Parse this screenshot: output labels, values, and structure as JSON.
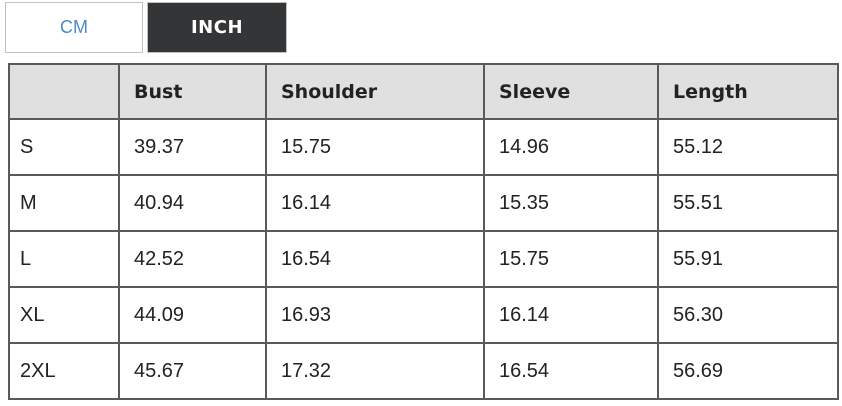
{
  "unit_toggle": {
    "cm_label": "CM",
    "inch_label": "INCH",
    "active_unit": "INCH",
    "active_bg_color": "#333537",
    "active_text_color": "#ffffff",
    "inactive_text_color": "#4a8bc4"
  },
  "size_table": {
    "columns": [
      "",
      "Bust",
      "Shoulder",
      "Sleeve",
      "Length"
    ],
    "rows": [
      {
        "size": "S",
        "values": [
          "39.37",
          "15.75",
          "14.96",
          "55.12"
        ]
      },
      {
        "size": "M",
        "values": [
          "40.94",
          "16.14",
          "15.35",
          "55.51"
        ]
      },
      {
        "size": "L",
        "values": [
          "42.52",
          "16.54",
          "15.75",
          "55.91"
        ]
      },
      {
        "size": "XL",
        "values": [
          "44.09",
          "16.93",
          "16.14",
          "56.30"
        ]
      },
      {
        "size": "2XL",
        "values": [
          "45.67",
          "17.32",
          "16.54",
          "56.69"
        ]
      }
    ],
    "header_bg_color": "#e0e0e0",
    "border_color": "#5a5a5a"
  }
}
